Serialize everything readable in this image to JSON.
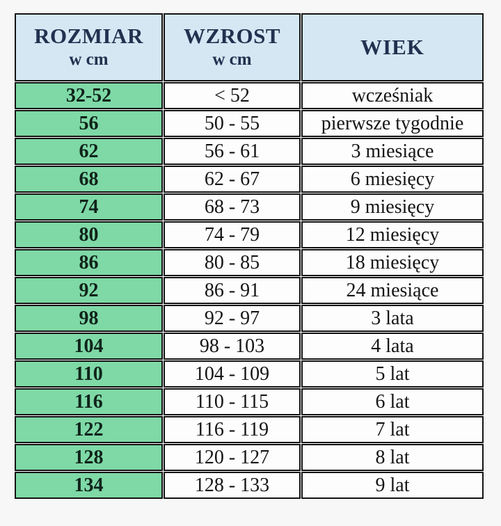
{
  "chart_data": {
    "type": "table",
    "title": "",
    "columns": [
      {
        "label": "ROZMIAR",
        "sublabel": "w cm"
      },
      {
        "label": "WZROST",
        "sublabel": "w cm"
      },
      {
        "label": "WIEK",
        "sublabel": ""
      }
    ],
    "rows": [
      [
        "32-52",
        "< 52",
        "wcześniak"
      ],
      [
        "56",
        "50 - 55",
        "pierwsze tygodnie"
      ],
      [
        "62",
        "56 - 61",
        "3 miesiące"
      ],
      [
        "68",
        "62 - 67",
        "6 miesięcy"
      ],
      [
        "74",
        "68 - 73",
        "9 miesięcy"
      ],
      [
        "80",
        "74 - 79",
        "12 miesięcy"
      ],
      [
        "86",
        "80 - 85",
        "18 miesięcy"
      ],
      [
        "92",
        "86 - 91",
        "24 miesiące"
      ],
      [
        "98",
        "92 - 97",
        "3 lata"
      ],
      [
        "104",
        "98 - 103",
        "4 lata"
      ],
      [
        "110",
        "104 - 109",
        "5 lat"
      ],
      [
        "116",
        "110 - 115",
        "6 lat"
      ],
      [
        "122",
        "116 - 119",
        "7 lat"
      ],
      [
        "128",
        "120 - 127",
        "8 lat"
      ],
      [
        "134",
        "128 - 133",
        "9 lat"
      ]
    ],
    "layout": {
      "legend": "none",
      "grid": "full-cell-borders"
    }
  },
  "colors": {
    "header_bg": "#d4e7f3",
    "size_column_bg": "#7ed9a6",
    "cell_bg": "#fdfdfd",
    "border": "#121212",
    "header_text": "#23304f",
    "body_text": "#151515",
    "page_bg": "#f7f7f7"
  }
}
